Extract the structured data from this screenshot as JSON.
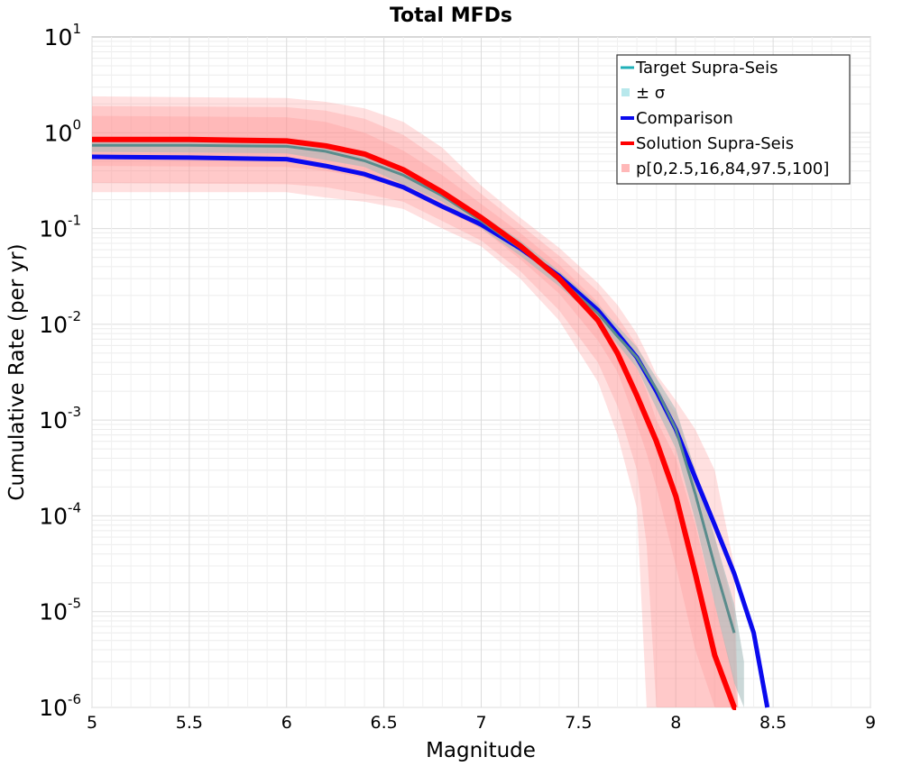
{
  "chart_data": {
    "type": "line",
    "title": "Total MFDs",
    "xlabel": "Magnitude",
    "ylabel": "Cumulative Rate (per yr)",
    "xlim": [
      5,
      9
    ],
    "ylim": [
      1e-06,
      10
    ],
    "yscale": "log",
    "grid": true,
    "legend_position": "top-right",
    "x_ticks": [
      "5",
      "5.5",
      "6",
      "6.5",
      "7",
      "7.5",
      "8",
      "8.5",
      "9"
    ],
    "y_ticks": [
      {
        "base": "10",
        "exp": "-6"
      },
      {
        "base": "10",
        "exp": "-5"
      },
      {
        "base": "10",
        "exp": "-4"
      },
      {
        "base": "10",
        "exp": "-3"
      },
      {
        "base": "10",
        "exp": "-2"
      },
      {
        "base": "10",
        "exp": "-1"
      },
      {
        "base": "10",
        "exp": "0"
      },
      {
        "base": "10",
        "exp": "1"
      }
    ],
    "series": [
      {
        "name": "Target Supra-Seis",
        "color": "#20b0b8",
        "x": [
          5.0,
          5.5,
          6.0,
          6.2,
          6.4,
          6.6,
          6.8,
          7.0,
          7.2,
          7.4,
          7.6,
          7.7,
          7.8,
          7.9,
          8.0,
          8.1,
          8.2,
          8.3
        ],
        "y": [
          0.74,
          0.74,
          0.72,
          0.64,
          0.51,
          0.36,
          0.22,
          0.12,
          0.063,
          0.03,
          0.013,
          0.0075,
          0.0045,
          0.0021,
          0.0008,
          0.00017,
          3e-05,
          6e-06
        ]
      },
      {
        "name": "Comparison",
        "color": "#0a0aee",
        "x": [
          5.0,
          5.5,
          6.0,
          6.2,
          6.4,
          6.6,
          6.8,
          7.0,
          7.2,
          7.4,
          7.6,
          7.7,
          7.8,
          7.9,
          8.0,
          8.1,
          8.2,
          8.3,
          8.4,
          8.47
        ],
        "y": [
          0.56,
          0.55,
          0.53,
          0.45,
          0.37,
          0.27,
          0.17,
          0.11,
          0.062,
          0.032,
          0.014,
          0.008,
          0.0045,
          0.002,
          0.0008,
          0.00025,
          8e-05,
          2.5e-05,
          6e-06,
          1e-06
        ]
      },
      {
        "name": "Solution Supra-Seis",
        "color": "#ff0000",
        "x": [
          5.0,
          5.5,
          6.0,
          6.2,
          6.4,
          6.6,
          6.8,
          7.0,
          7.2,
          7.4,
          7.6,
          7.7,
          7.8,
          7.9,
          8.0,
          8.1,
          8.2,
          8.3,
          8.31
        ],
        "y": [
          0.85,
          0.85,
          0.82,
          0.73,
          0.6,
          0.41,
          0.24,
          0.13,
          0.066,
          0.03,
          0.011,
          0.005,
          0.0018,
          0.0006,
          0.00016,
          2.5e-05,
          3.5e-06,
          1e-06,
          9e-07
        ]
      }
    ],
    "sigma_band": {
      "name": "± σ",
      "color": "#b8e8ec",
      "x": [
        5.0,
        6.0,
        6.4,
        6.8,
        7.0,
        7.2,
        7.4,
        7.6,
        7.8,
        8.0,
        8.1,
        8.2,
        8.3,
        8.35
      ],
      "lower": [
        0.63,
        0.61,
        0.44,
        0.19,
        0.1,
        0.052,
        0.025,
        0.011,
        0.0035,
        0.0005,
        9e-05,
        1.2e-05,
        1.8e-06,
        1e-06
      ],
      "upper": [
        0.88,
        0.86,
        0.6,
        0.26,
        0.14,
        0.075,
        0.036,
        0.016,
        0.0058,
        0.0013,
        0.0003,
        6e-05,
        1.2e-05,
        3e-06
      ]
    },
    "percentile_bands": {
      "name": "p[0,2.5,16,84,97.5,100]",
      "color": "#ff9090",
      "x": [
        5.0,
        6.0,
        6.2,
        6.4,
        6.6,
        6.8,
        7.0,
        7.2,
        7.4,
        7.6,
        7.7,
        7.8,
        7.85,
        7.9,
        8.0,
        8.1,
        8.2,
        8.3,
        8.32
      ],
      "p0": [
        0.24,
        0.24,
        0.21,
        0.19,
        0.16,
        0.1,
        0.065,
        0.03,
        0.011,
        0.0025,
        0.0007,
        0.00012,
        1e-06,
        1e-06,
        1e-06,
        1e-06,
        1e-06,
        1e-06,
        1e-06
      ],
      "p2_5": [
        0.3,
        0.29,
        0.27,
        0.23,
        0.19,
        0.12,
        0.075,
        0.036,
        0.014,
        0.004,
        0.0014,
        0.0003,
        5e-05,
        1e-06,
        1e-06,
        1e-06,
        1e-06,
        1e-06,
        1e-06
      ],
      "p16": [
        0.45,
        0.44,
        0.4,
        0.34,
        0.26,
        0.16,
        0.1,
        0.048,
        0.021,
        0.0068,
        0.0032,
        0.0009,
        0.00045,
        0.0002,
        3e-05,
        4e-06,
        1e-06,
        1e-06,
        1e-06
      ],
      "p84": [
        1.5,
        1.45,
        1.3,
        1.0,
        0.65,
        0.36,
        0.18,
        0.09,
        0.042,
        0.017,
        0.0085,
        0.0035,
        0.002,
        0.001,
        0.0004,
        8e-05,
        1.2e-05,
        2e-06,
        1e-06
      ],
      "p97_5": [
        1.9,
        1.85,
        1.7,
        1.4,
        0.95,
        0.5,
        0.23,
        0.11,
        0.052,
        0.022,
        0.012,
        0.006,
        0.0038,
        0.0022,
        0.0012,
        0.0003,
        6e-05,
        1e-05,
        1e-06
      ],
      "p100": [
        2.4,
        2.3,
        2.1,
        1.8,
        1.3,
        0.7,
        0.28,
        0.13,
        0.063,
        0.027,
        0.016,
        0.008,
        0.005,
        0.003,
        0.0016,
        0.0008,
        0.0003,
        3e-05,
        1e-06
      ]
    }
  },
  "legend": {
    "items": [
      {
        "label": "Target Supra-Seis",
        "kind": "line",
        "color": "#20b0b8"
      },
      {
        "label": "± σ",
        "kind": "patch",
        "color": "#b8e8ec"
      },
      {
        "label": "Comparison",
        "kind": "line",
        "color": "#0a0aee"
      },
      {
        "label": "Solution Supra-Seis",
        "kind": "line",
        "color": "#ff0000"
      },
      {
        "label": "p[0,2.5,16,84,97.5,100]",
        "kind": "patch",
        "color": "#ffb8b8"
      }
    ]
  }
}
